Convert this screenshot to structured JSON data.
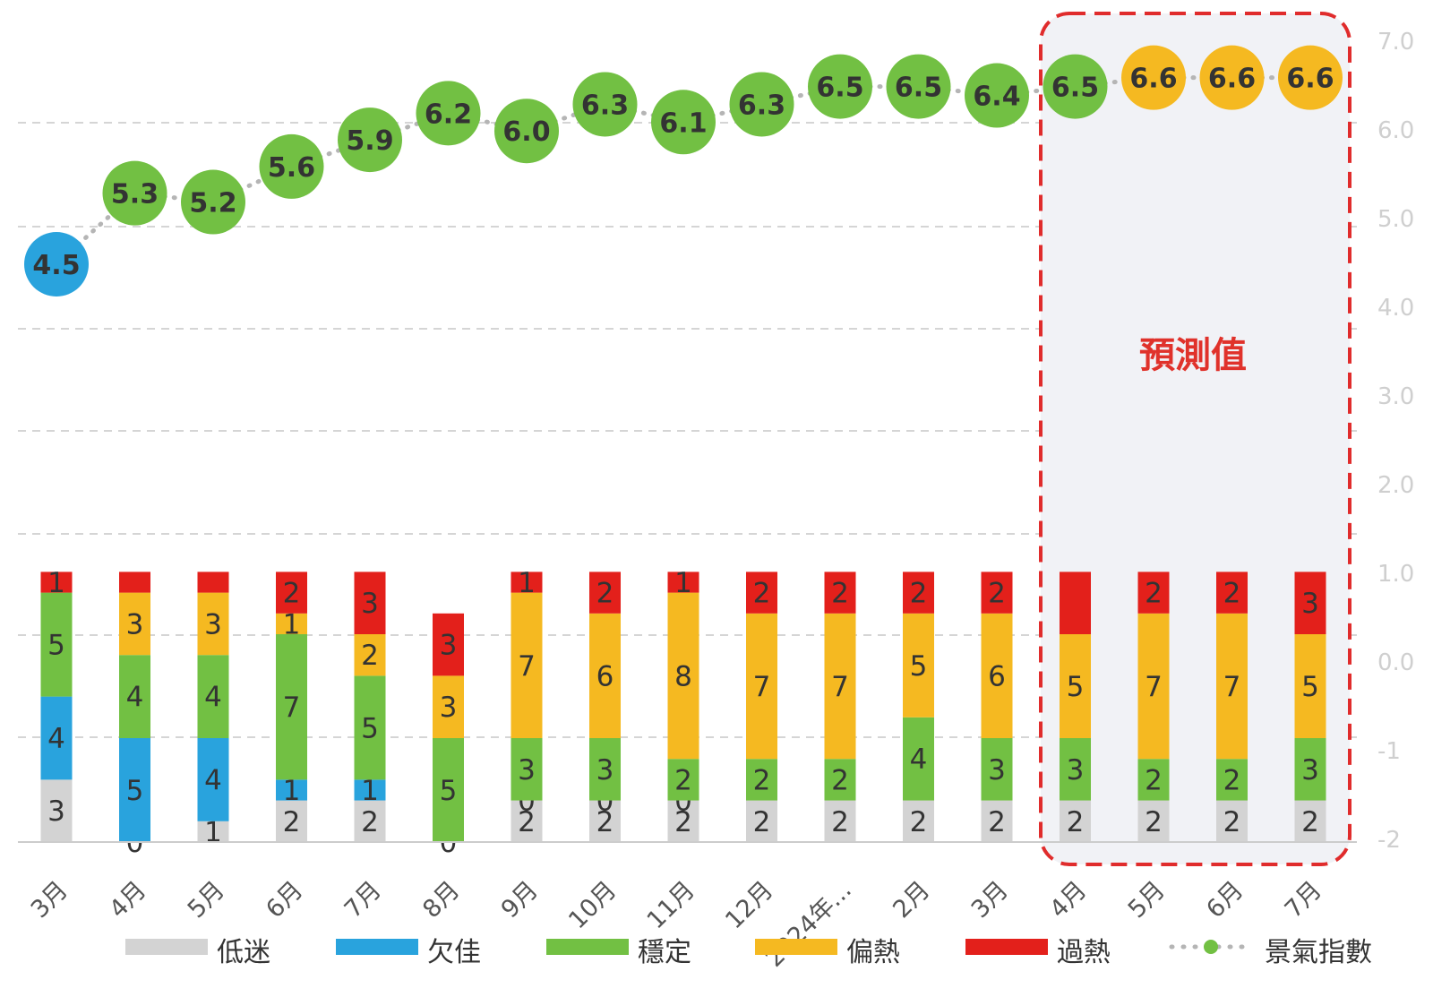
{
  "chart_data": {
    "type": "stacked-bar+line",
    "categories": [
      "3月",
      "4月",
      "5月",
      "6月",
      "7月",
      "8月",
      "9月",
      "10月",
      "11月",
      "12月",
      "2024年...",
      "2月",
      "3月",
      "4月",
      "5月",
      "6月",
      "7月"
    ],
    "forecast_start_index": 13,
    "forecast_label": "預測值",
    "series": [
      {
        "name": "低迷",
        "color": "#d3d3d3",
        "values": [
          3,
          0,
          1,
          2,
          2,
          0,
          2,
          2,
          2,
          2,
          2,
          2,
          2,
          2,
          2,
          2,
          2
        ]
      },
      {
        "name": "欠佳",
        "color": "#29a3dd",
        "values": [
          4,
          5,
          4,
          1,
          1,
          0,
          0,
          0,
          0,
          0,
          0,
          0,
          0,
          0,
          0,
          0,
          0
        ]
      },
      {
        "name": "穩定",
        "color": "#72c043",
        "values": [
          5,
          4,
          4,
          7,
          5,
          5,
          3,
          3,
          2,
          2,
          2,
          4,
          3,
          3,
          2,
          2,
          3
        ]
      },
      {
        "name": "偏熱",
        "color": "#f5b921",
        "values": [
          0,
          3,
          3,
          1,
          2,
          3,
          7,
          6,
          8,
          7,
          7,
          5,
          6,
          5,
          7,
          7,
          5
        ]
      },
      {
        "name": "過熱",
        "color": "#e3201b",
        "values": [
          1,
          1,
          1,
          2,
          3,
          3,
          1,
          2,
          1,
          2,
          2,
          2,
          2,
          3,
          2,
          2,
          3
        ]
      }
    ],
    "segment_labels": [
      [
        "3",
        "4",
        "5",
        "",
        "1"
      ],
      [
        "0",
        "5",
        "4",
        "3",
        ""
      ],
      [
        "1",
        "4",
        "4",
        "3",
        ""
      ],
      [
        "2",
        "1",
        "7",
        "1",
        "2"
      ],
      [
        "2",
        "1",
        "5",
        "2",
        "3"
      ],
      [
        "0",
        "",
        "5",
        "3",
        "3"
      ],
      [
        "2",
        "0",
        "3",
        "7",
        "1"
      ],
      [
        "2",
        "0",
        "3",
        "6",
        "2"
      ],
      [
        "2",
        "0",
        "2",
        "8",
        "1"
      ],
      [
        "2",
        "",
        "2",
        "7",
        "2"
      ],
      [
        "2",
        "",
        "2",
        "7",
        "2"
      ],
      [
        "2",
        "",
        "4",
        "5",
        "2"
      ],
      [
        "2",
        "",
        "3",
        "6",
        "2"
      ],
      [
        "2",
        "",
        "3",
        "5",
        ""
      ],
      [
        "2",
        "",
        "2",
        "7",
        "2"
      ],
      [
        "2",
        "",
        "2",
        "7",
        "2"
      ],
      [
        "2",
        "",
        "3",
        "5",
        "3"
      ]
    ],
    "index_line": {
      "name": "景氣指數",
      "values": [
        4.5,
        5.3,
        5.2,
        5.6,
        5.9,
        6.2,
        6.0,
        6.3,
        6.1,
        6.3,
        6.5,
        6.5,
        6.4,
        6.5,
        6.6,
        6.6,
        6.6
      ],
      "labels": [
        "4.5",
        "5.3",
        "5.2",
        "5.6",
        "5.9",
        "6.2",
        "6.0",
        "6.3",
        "6.1",
        "6.3",
        "6.5",
        "6.5",
        "6.4",
        "6.5",
        "6.6",
        "6.6",
        "6.6"
      ],
      "marker_colors": [
        "#29a3dd",
        "#72c043",
        "#72c043",
        "#72c043",
        "#72c043",
        "#72c043",
        "#72c043",
        "#72c043",
        "#72c043",
        "#72c043",
        "#72c043",
        "#72c043",
        "#72c043",
        "#72c043",
        "#f5b921",
        "#f5b921",
        "#f5b921"
      ],
      "dot_color": "#b5b5b5"
    },
    "bar_axis_max": 13,
    "right_axis": {
      "labels": [
        "7.0",
        "6.0",
        "5.0",
        "4.0",
        "3.0",
        "2.0",
        "1.0",
        "0.0",
        "-1",
        "-2"
      ]
    },
    "legend": [
      {
        "name": "低迷",
        "color": "#d3d3d3"
      },
      {
        "name": "欠佳",
        "color": "#29a3dd"
      },
      {
        "name": "穩定",
        "color": "#72c043"
      },
      {
        "name": "偏熱",
        "color": "#f5b921"
      },
      {
        "name": "過熱",
        "color": "#e3201b"
      },
      {
        "name": "景氣指數",
        "color": "#72c043"
      }
    ]
  }
}
